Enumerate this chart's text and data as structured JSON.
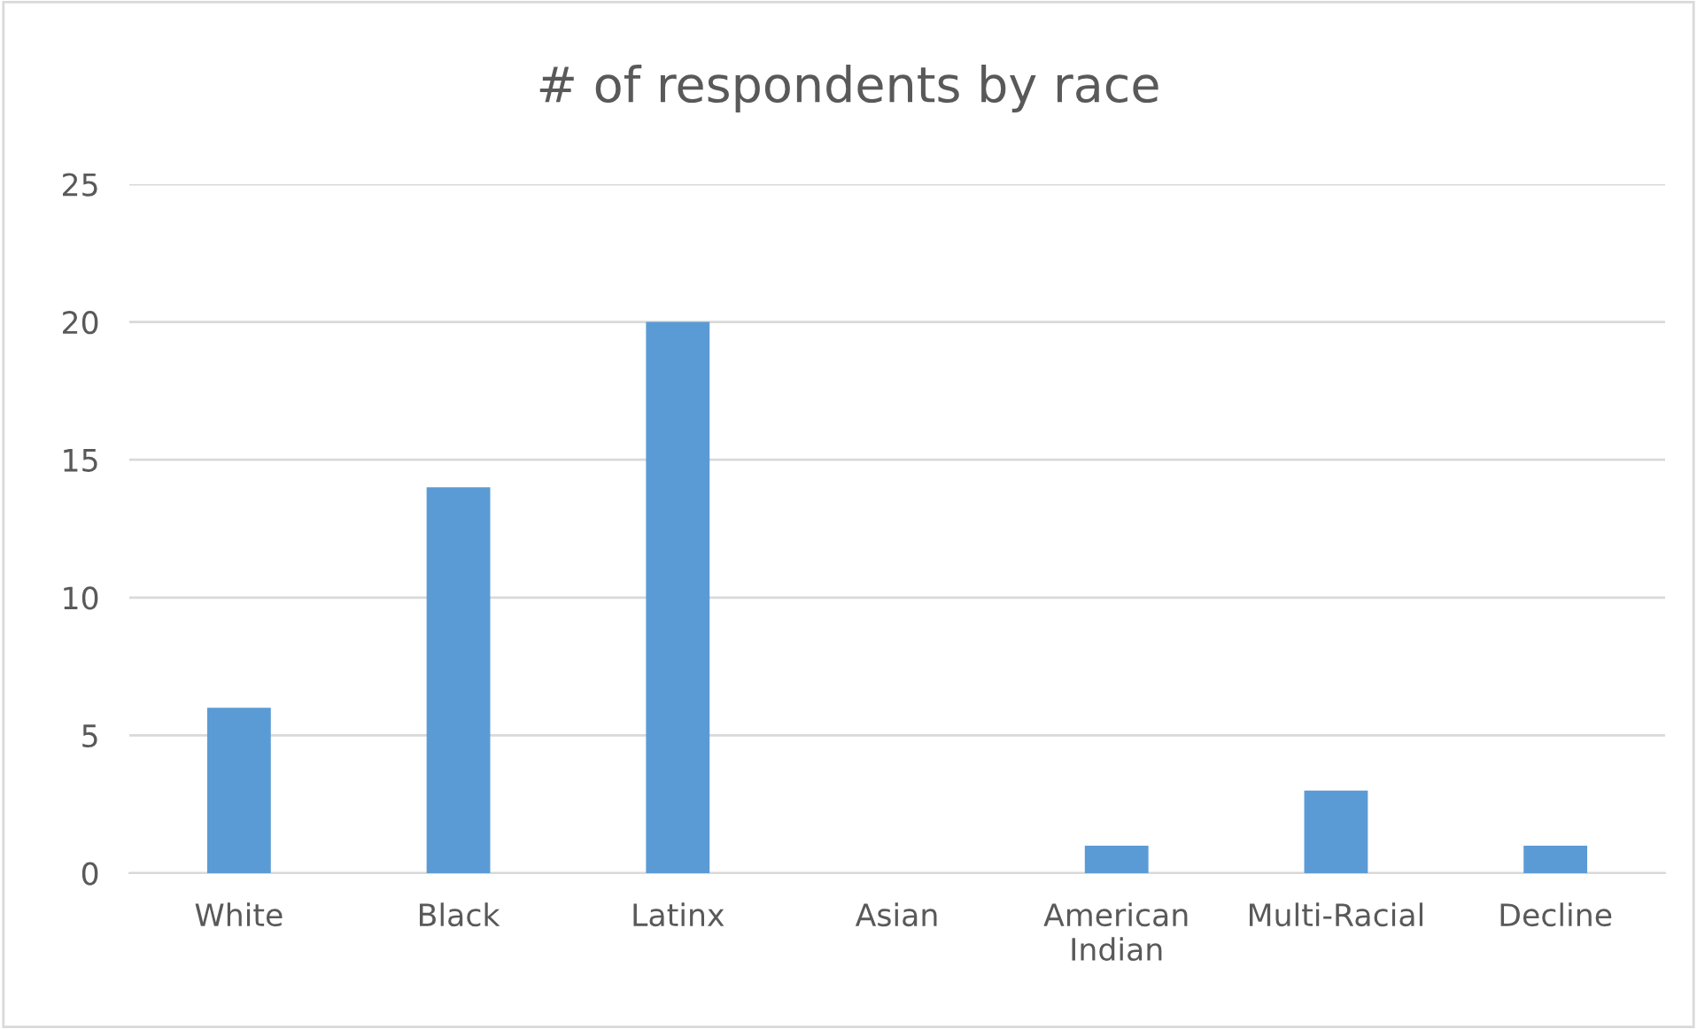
{
  "chart_data": {
    "type": "bar",
    "title": "# of respondents by race",
    "categories": [
      "White",
      "Black",
      "Latinx",
      "Asian",
      "American\nIndian",
      "Multi-Racial",
      "Decline"
    ],
    "values": [
      6,
      14,
      20,
      0,
      1,
      3,
      1
    ],
    "color": "#5b9bd5",
    "ylim": [
      0,
      25
    ],
    "yticks": [
      0,
      5,
      10,
      15,
      20,
      25
    ],
    "grid": "y"
  }
}
